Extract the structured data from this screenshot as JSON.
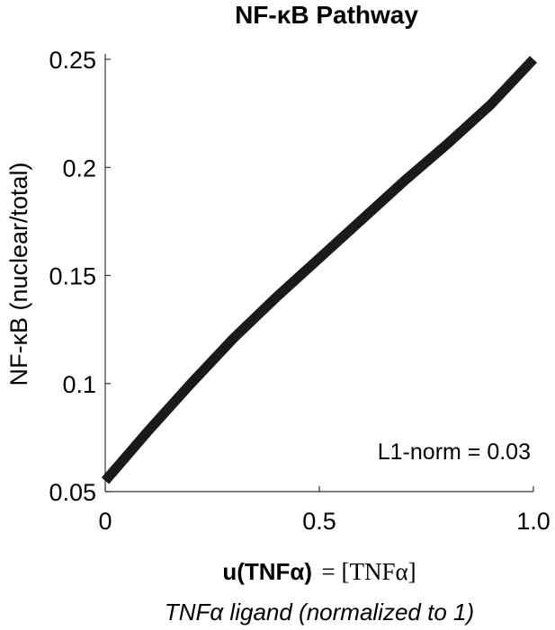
{
  "chart_data": {
    "type": "line",
    "title": "NF-κB Pathway",
    "ylabel": "NF-κB (nuclear/total)",
    "xlabel": {
      "main_bold": "u(TNFα)",
      "main_rest": "= [TNFα]",
      "sub": "TNFα ligand (normalized to 1)"
    },
    "xlim": [
      0,
      1.0
    ],
    "ylim": [
      0.05,
      0.25
    ],
    "x_ticks": [
      0,
      0.5,
      1.0
    ],
    "x_tick_labels": [
      "0",
      "0.5",
      "1.0"
    ],
    "y_ticks": [
      0.05,
      0.1,
      0.15,
      0.2,
      0.25
    ],
    "y_tick_labels": [
      "0.05",
      "0.1",
      "0.15",
      "0.2",
      "0.25"
    ],
    "grid": false,
    "series": [
      {
        "color": "#1a1a1a",
        "x": [
          0.0,
          0.1,
          0.2,
          0.3,
          0.4,
          0.5,
          0.6,
          0.7,
          0.8,
          0.9,
          1.0
        ],
        "y": [
          0.055,
          0.078,
          0.1,
          0.121,
          0.14,
          0.158,
          0.176,
          0.194,
          0.211,
          0.229,
          0.25
        ]
      }
    ],
    "annotations": [
      "L1-norm = 0.03"
    ]
  }
}
